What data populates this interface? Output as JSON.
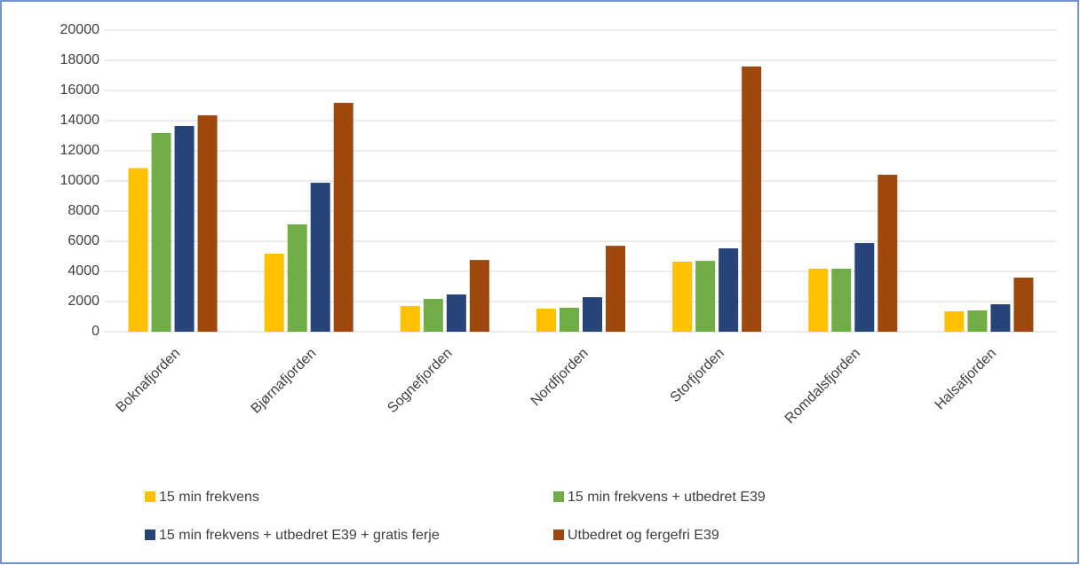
{
  "chart_data": {
    "type": "bar",
    "categories": [
      "Boknafjorden",
      "Bjørnafjorden",
      "Sognefjorden",
      "Nordfjorden",
      "Storfjorden",
      "Romdalsfjorden",
      "Halsafjorden"
    ],
    "series": [
      {
        "name": "15 min frekvens",
        "color": "#ffc000",
        "values": [
          10850,
          5180,
          1700,
          1530,
          4650,
          4180,
          1350
        ]
      },
      {
        "name": "15 min frekvens + utbedret E39",
        "color": "#70ad47",
        "values": [
          13180,
          7120,
          2180,
          1590,
          4700,
          4180,
          1410
        ]
      },
      {
        "name": "15 min frekvens + utbedret E39 + gratis ferje",
        "color": "#264478",
        "values": [
          13650,
          9880,
          2470,
          2290,
          5530,
          5880,
          1820
        ]
      },
      {
        "name": "Utbedret og fergefri E39",
        "color": "#9e480e",
        "values": [
          14350,
          15180,
          4760,
          5700,
          17590,
          10410,
          3590
        ]
      }
    ],
    "ylim": [
      0,
      20000
    ],
    "yticks": [
      0,
      2000,
      4000,
      6000,
      8000,
      10000,
      12000,
      14000,
      16000,
      18000,
      20000
    ],
    "grid": true
  }
}
